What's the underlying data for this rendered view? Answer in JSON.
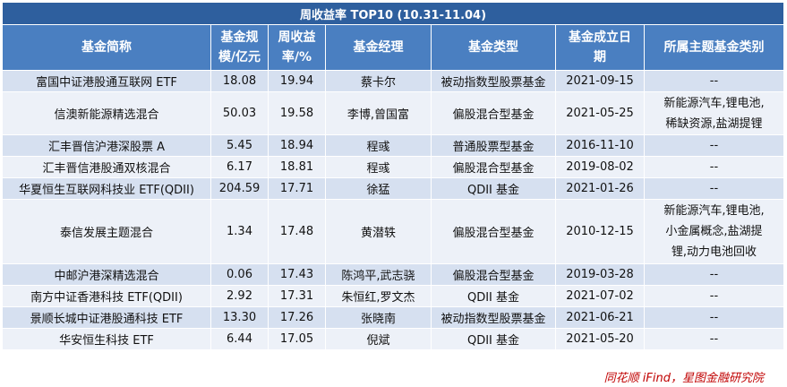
{
  "title": "周收益率 TOP10 (10.31-11.04)",
  "headers": {
    "name": [
      "基金简称"
    ],
    "size": [
      "基金规",
      "模/亿元"
    ],
    "return": [
      "周收益",
      "率/%"
    ],
    "manager": [
      "基金经理"
    ],
    "type": [
      "基金类型"
    ],
    "date": [
      "基金成立日",
      "期"
    ],
    "theme": [
      "所属主题基金类别"
    ]
  },
  "rows": [
    {
      "name": "富国中证港股通互联网 ETF",
      "size": "18.08",
      "return": "19.94",
      "manager": "蔡卡尔",
      "type": "被动指数型股票基金",
      "date": "2021-09-15",
      "theme": [
        "--"
      ]
    },
    {
      "name": "信澳新能源精选混合",
      "size": "50.03",
      "return": "19.58",
      "manager": "李博,曾国富",
      "type": "偏股混合型基金",
      "date": "2021-05-25",
      "theme": [
        "新能源汽车,锂电池,",
        "稀缺资源,盐湖提锂"
      ]
    },
    {
      "name": "汇丰晋信沪港深股票 A",
      "size": "5.45",
      "return": "18.94",
      "manager": "程彧",
      "type": "普通股票型基金",
      "date": "2016-11-10",
      "theme": [
        "--"
      ]
    },
    {
      "name": "汇丰晋信港股通双核混合",
      "size": "6.17",
      "return": "18.81",
      "manager": "程彧",
      "type": "偏股混合型基金",
      "date": "2019-08-02",
      "theme": [
        "--"
      ]
    },
    {
      "name": "华夏恒生互联网科技业 ETF(QDII)",
      "size": "204.59",
      "return": "17.71",
      "manager": "徐猛",
      "type": "QDII 基金",
      "date": "2021-01-26",
      "theme": [
        "--"
      ]
    },
    {
      "name": "泰信发展主题混合",
      "size": "1.34",
      "return": "17.48",
      "manager": "黄潜轶",
      "type": "偏股混合型基金",
      "date": "2010-12-15",
      "theme": [
        "新能源汽车,锂电池,",
        "小金属概念,盐湖提",
        "锂,动力电池回收"
      ]
    },
    {
      "name": "中邮沪港深精选混合",
      "size": "0.06",
      "return": "17.43",
      "manager": "陈鸿平,武志骁",
      "type": "偏股混合型基金",
      "date": "2019-03-28",
      "theme": [
        "--"
      ]
    },
    {
      "name": "南方中证香港科技 ETF(QDII)",
      "size": "2.92",
      "return": "17.31",
      "manager": "朱恒红,罗文杰",
      "type": "QDII 基金",
      "date": "2021-07-02",
      "theme": [
        "--"
      ]
    },
    {
      "name": "景顺长城中证港股通科技 ETF",
      "size": "13.30",
      "return": "17.26",
      "manager": "张晓南",
      "type": "被动指数型股票基金",
      "date": "2021-06-21",
      "theme": [
        "--"
      ]
    },
    {
      "name": "华安恒生科技 ETF",
      "size": "6.44",
      "return": "17.05",
      "manager": "倪斌",
      "type": "QDII 基金",
      "date": "2021-05-20",
      "theme": [
        "--"
      ]
    }
  ],
  "source": "同花顺 iFind，星图金融研究院"
}
